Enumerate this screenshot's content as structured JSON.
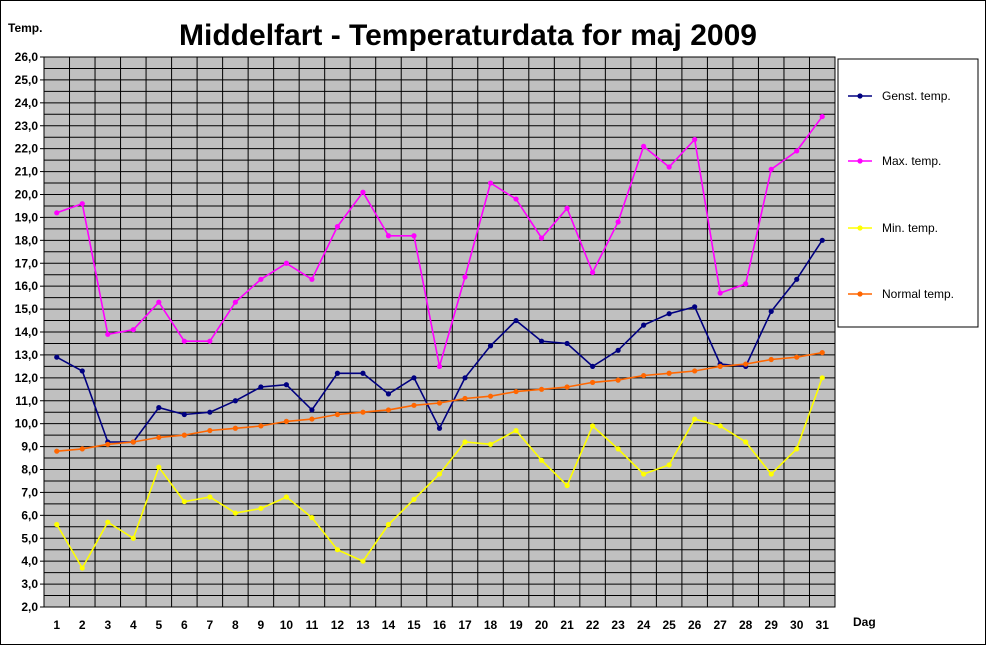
{
  "chart_data": {
    "type": "line",
    "title": "Middelfart - Temperaturdata for maj 2009",
    "ylabel": "Temp.",
    "xlabel": "Dag",
    "ylim": [
      2,
      26
    ],
    "ytick_step": 1,
    "grid": true,
    "plot_background": "#c0c0c0",
    "legend_position": "right",
    "x": [
      1,
      2,
      3,
      4,
      5,
      6,
      7,
      8,
      9,
      10,
      11,
      12,
      13,
      14,
      15,
      16,
      17,
      18,
      19,
      20,
      21,
      22,
      23,
      24,
      25,
      26,
      27,
      28,
      29,
      30,
      31
    ],
    "series": [
      {
        "name": "Genst. temp.",
        "color": "#000080",
        "values": [
          12.9,
          12.3,
          9.2,
          9.2,
          10.7,
          10.4,
          10.5,
          11.0,
          11.6,
          11.7,
          10.6,
          12.2,
          12.2,
          11.3,
          12.0,
          9.8,
          12.0,
          13.4,
          14.5,
          13.6,
          13.5,
          12.5,
          13.2,
          14.3,
          14.8,
          15.1,
          12.6,
          12.5,
          14.9,
          16.3,
          18.0
        ]
      },
      {
        "name": "Max. temp.",
        "color": "#ff00ff",
        "values": [
          19.2,
          19.6,
          13.9,
          14.1,
          15.3,
          13.6,
          13.6,
          15.3,
          16.3,
          17.0,
          16.3,
          18.6,
          20.1,
          18.2,
          18.2,
          12.5,
          16.4,
          20.5,
          19.8,
          18.1,
          19.4,
          16.6,
          18.8,
          22.1,
          21.2,
          22.4,
          15.7,
          16.1,
          21.1,
          21.9,
          23.4
        ]
      },
      {
        "name": "Min. temp.",
        "color": "#ffff00",
        "values": [
          5.6,
          3.7,
          5.7,
          5.0,
          8.1,
          6.6,
          6.8,
          6.1,
          6.3,
          6.8,
          5.9,
          4.5,
          4.0,
          5.6,
          6.7,
          7.8,
          9.2,
          9.1,
          9.7,
          8.4,
          7.3,
          9.9,
          8.9,
          7.8,
          8.2,
          10.2,
          9.9,
          9.2,
          7.8,
          8.9,
          12.0
        ]
      },
      {
        "name": "Normal temp.",
        "color": "#ff6600",
        "values": [
          8.8,
          8.9,
          9.1,
          9.2,
          9.4,
          9.5,
          9.7,
          9.8,
          9.9,
          10.1,
          10.2,
          10.4,
          10.5,
          10.6,
          10.8,
          10.9,
          11.1,
          11.2,
          11.4,
          11.5,
          11.6,
          11.8,
          11.9,
          12.1,
          12.2,
          12.3,
          12.5,
          12.6,
          12.8,
          12.9,
          13.1
        ]
      }
    ]
  }
}
